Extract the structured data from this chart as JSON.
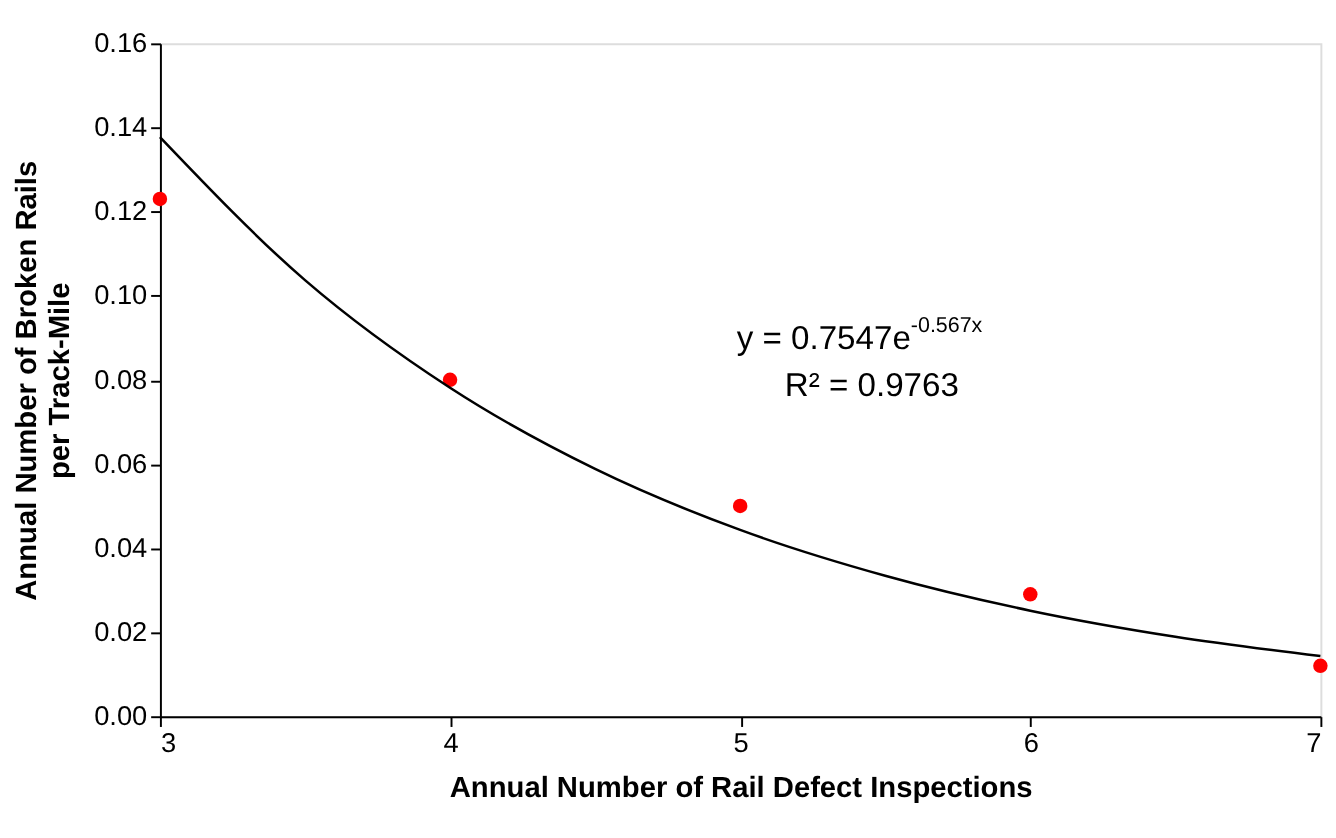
{
  "chart_data": {
    "type": "scatter",
    "xlabel": "Annual Number of Rail Defect Inspections",
    "ylabel": "Annual Number of Broken Rails per Track-Mile",
    "x": [
      3,
      4,
      5,
      6,
      7
    ],
    "series": [
      {
        "type": "scatter",
        "color": "#ff0000",
        "marker": "circle",
        "values": [
          0.123,
          0.08,
          0.05,
          0.029,
          0.012
        ]
      },
      {
        "type": "line",
        "color": "#000000",
        "line_style": "solid",
        "marker": "none",
        "x": [
          3,
          3.5,
          4,
          4.5,
          5,
          5.5,
          6,
          6.5,
          7
        ],
        "values": [
          0.1377,
          0.1037,
          0.0781,
          0.0588,
          0.0443,
          0.0334,
          0.0251,
          0.0189,
          0.0143
        ]
      }
    ],
    "annotations": [
      "y = 0.7547e$^{-0.567x}$",
      "R² = 0.9763"
    ],
    "xlim": [
      3,
      7
    ],
    "xticks": [
      3,
      4,
      5,
      6,
      7
    ],
    "ylim": [
      0,
      0.16
    ],
    "yticks": [
      {
        "value": 0,
        "label": "0.00"
      },
      {
        "value": 0.02,
        "label": "0.02"
      },
      {
        "value": 0.04,
        "label": "0.04"
      },
      {
        "value": 0.06,
        "label": "0.06"
      },
      {
        "value": 0.08,
        "label": "0.08"
      },
      {
        "value": 0.1,
        "label": "0.10"
      },
      {
        "value": 0.12,
        "label": "0.12"
      },
      {
        "value": 0.14,
        "label": "0.14"
      },
      {
        "value": 0.16,
        "label": "0.16"
      }
    ],
    "grid": false
  }
}
